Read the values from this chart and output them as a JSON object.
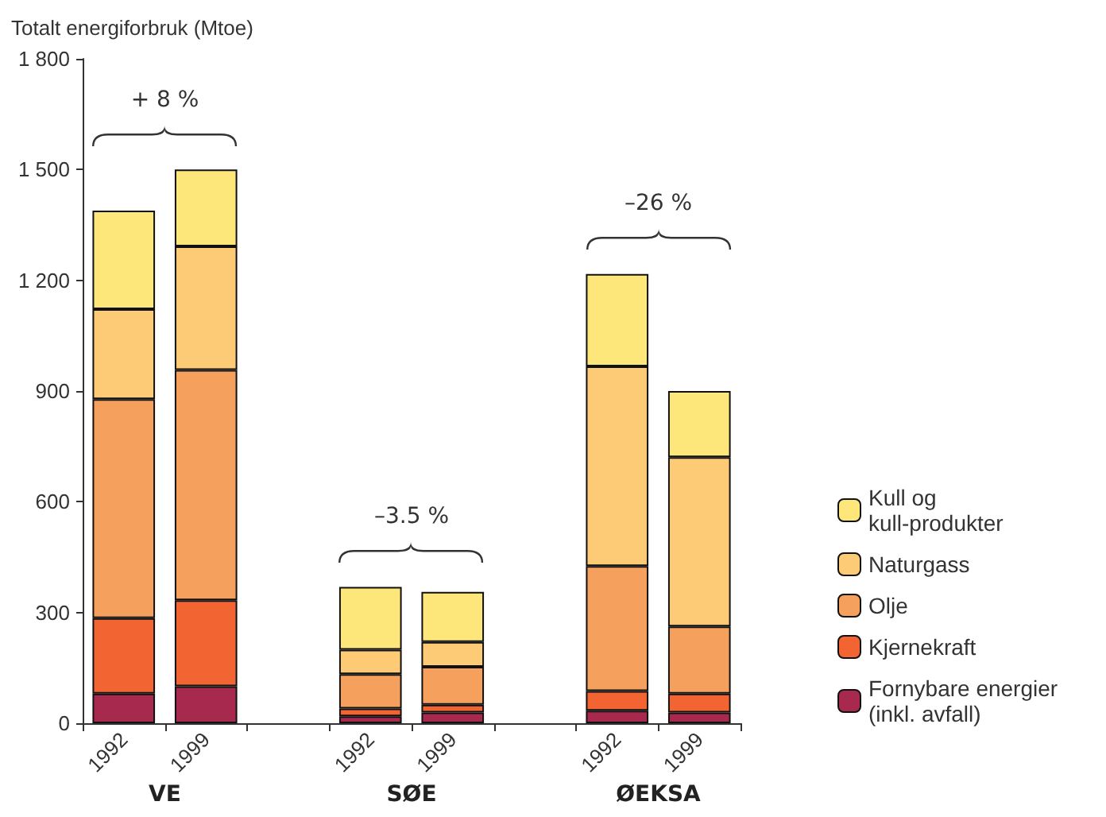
{
  "chart_data": {
    "type": "bar",
    "stacked": true,
    "ylabel": "Totalt energiforbruk (Mtoe)",
    "categories": [
      "1992",
      "1999",
      null,
      "1992",
      "1999",
      null,
      "1992",
      "1999"
    ],
    "series": [
      {
        "name": "Fornybare energier (inkl. avfall)",
        "color": "#a8294e",
        "values": [
          80,
          100,
          null,
          19,
          29,
          null,
          34,
          29
        ]
      },
      {
        "name": "Kjernekraft",
        "color": "#f26432",
        "values": [
          205,
          233,
          null,
          21,
          21,
          null,
          53,
          51
        ]
      },
      {
        "name": "Olje",
        "color": "#f5a05c",
        "values": [
          593,
          624,
          null,
          93,
          103,
          null,
          339,
          182
        ]
      },
      {
        "name": "Naturgass",
        "color": "#fdca76",
        "values": [
          244,
          335,
          null,
          66,
          67,
          null,
          541,
          459
        ]
      },
      {
        "name": "Kull og kull-produkter",
        "color": "#fee77a",
        "values": [
          267,
          208,
          null,
          170,
          136,
          null,
          250,
          179
        ]
      }
    ],
    "ylim": [
      0,
      1800
    ],
    "yticks": [
      0,
      300,
      600,
      900,
      {
        "value": 1200,
        "label": "1 200"
      },
      {
        "value": 1500,
        "label": "1 500"
      },
      {
        "value": 1800,
        "label": "1 800"
      }
    ],
    "grid": false,
    "legend": "right",
    "annotations": [
      "+ 8 %",
      "–3.5 %",
      "–26 %",
      "VE",
      "SØE",
      "ØEKSA"
    ]
  }
}
